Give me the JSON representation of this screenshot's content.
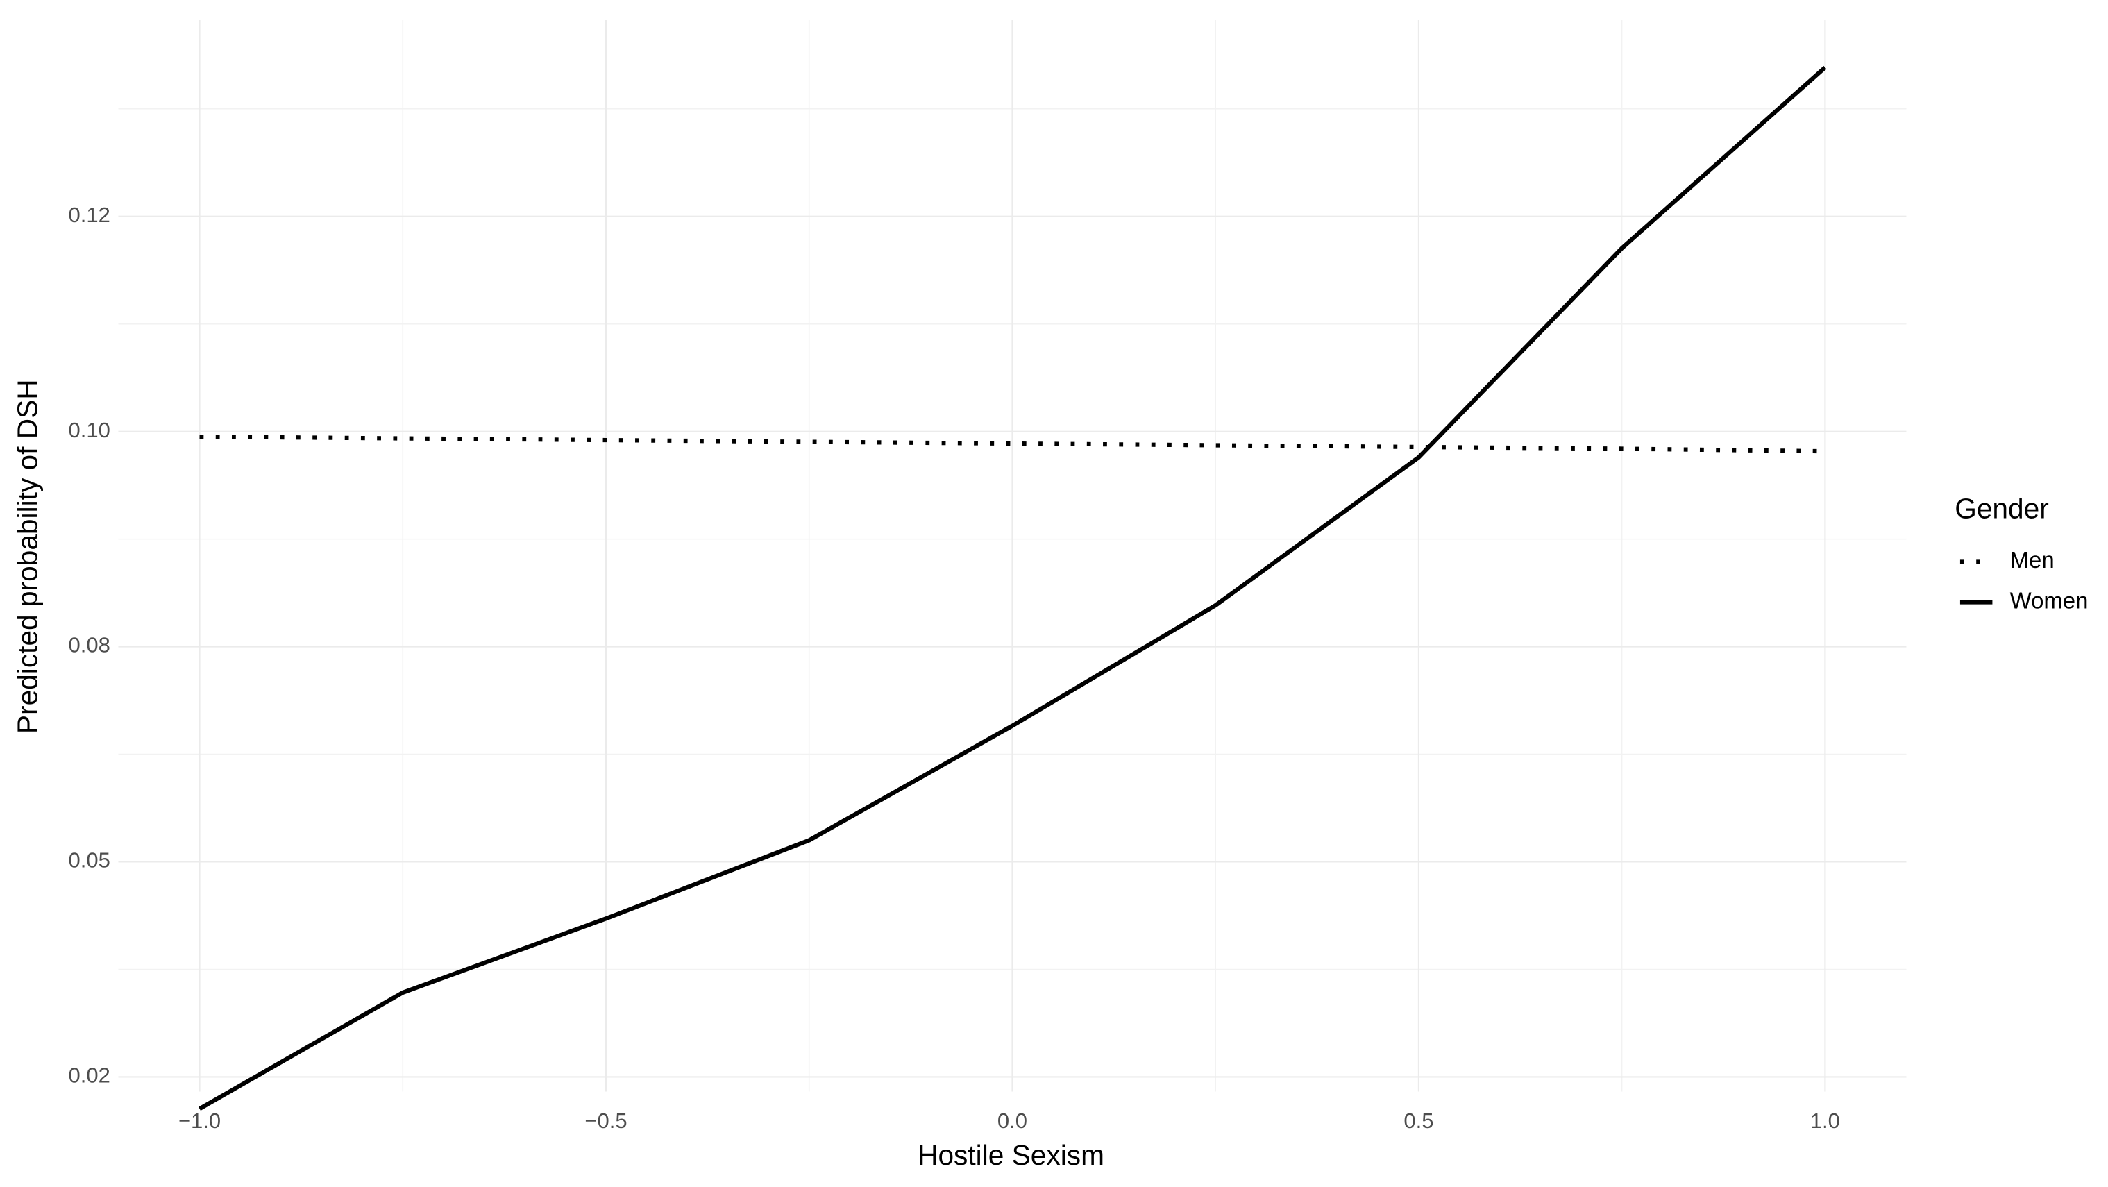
{
  "chart_data": {
    "type": "line",
    "x_label": "Hostile Sexism",
    "y_label": "Predicted probability of DSH",
    "legend_title": "Gender",
    "legend_position": "right",
    "grid": true,
    "x": [
      -1,
      -0.75,
      -0.5,
      -0.25,
      0,
      0.25,
      0.5,
      0.75,
      1
    ],
    "series": [
      {
        "name": "Men",
        "color": "#000000",
        "linestyle": "dotted",
        "values": [
          0.0994,
          0.0992,
          0.099,
          0.0988,
          0.0986,
          0.0984,
          0.0982,
          0.098,
          0.0977
        ]
      },
      {
        "name": "Women",
        "color": "#000000",
        "linestyle": "solid",
        "values": [
          0.0213,
          0.0348,
          0.0434,
          0.0525,
          0.0658,
          0.0798,
          0.097,
          0.1213,
          0.1423
        ]
      }
    ],
    "xlim": [
      -1.1,
      1.1
    ],
    "xticks": [
      {
        "value": -1,
        "label": "−1.0"
      },
      {
        "value": -0.5,
        "label": "−0.5"
      },
      {
        "value": 0,
        "label": "0.0"
      },
      {
        "value": 0.5,
        "label": "0.5"
      },
      {
        "value": 1,
        "label": "1.0"
      }
    ],
    "ylim": [
      0.0233,
      0.1478
    ],
    "yticks": [
      {
        "value": 0.025,
        "label": "0.02"
      },
      {
        "value": 0.05,
        "label": "0.05"
      },
      {
        "value": 0.075,
        "label": "0.08"
      },
      {
        "value": 0.1,
        "label": "0.10"
      },
      {
        "value": 0.125,
        "label": "0.12"
      }
    ]
  }
}
